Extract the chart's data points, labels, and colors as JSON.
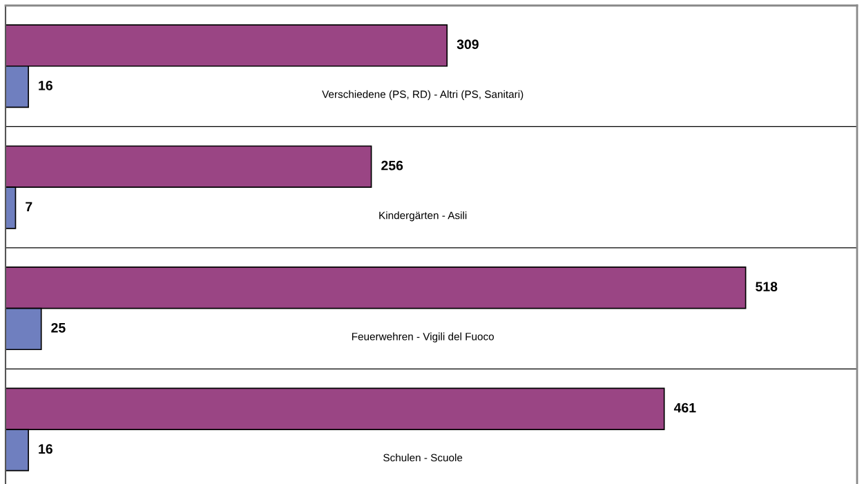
{
  "chart_data": {
    "type": "bar",
    "orientation": "horizontal",
    "categories": [
      "Verschiedene (PS, RD) - Altri (PS, Sanitari)",
      "Kindergärten - Asili",
      "Feuerwehren - Vigili del Fuoco",
      "Schulen - Scuole"
    ],
    "series": [
      {
        "color": "#9a4584",
        "values": [
          309,
          256,
          518,
          461
        ]
      },
      {
        "color": "#6f7fbf",
        "values": [
          16,
          7,
          25,
          16
        ]
      }
    ],
    "xlim": [
      0,
      596
    ],
    "data_labels": true,
    "grid": "y"
  }
}
